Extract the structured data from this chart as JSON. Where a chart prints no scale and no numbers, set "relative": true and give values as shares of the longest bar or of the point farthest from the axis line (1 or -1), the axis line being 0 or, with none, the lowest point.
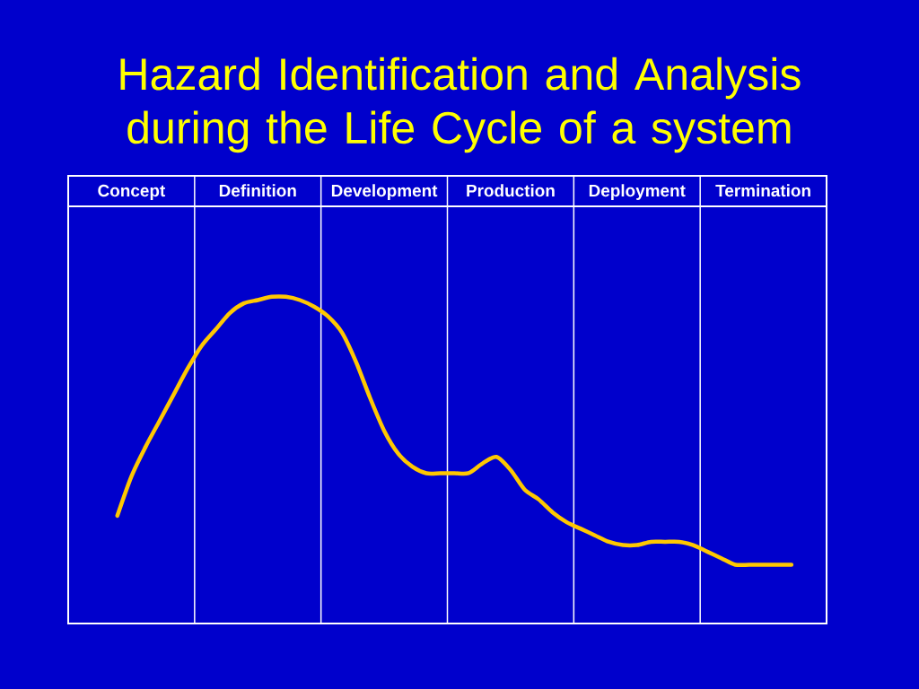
{
  "chart_data": {
    "type": "line",
    "title": "Hazard Identification and Analysis during the Life Cycle of a system",
    "relative": true,
    "categories": [
      null,
      null,
      null,
      null,
      "Concept",
      null,
      null,
      null,
      null,
      null,
      null,
      null,
      null,
      "Definition",
      null,
      null,
      null,
      null,
      null,
      null,
      null,
      null,
      "Development",
      null,
      null,
      null,
      null,
      null,
      null,
      null,
      null,
      "Production",
      null,
      null,
      null,
      null,
      null,
      null,
      null,
      null,
      "Deployment",
      null,
      null,
      null,
      null,
      null,
      null,
      null,
      null,
      "Termination",
      null,
      null,
      null,
      null
    ],
    "series": [
      {
        "color": "#ffc800",
        "values": [
          null,
          null,
          null,
          0.33,
          0.45,
          0.54,
          0.62,
          0.7,
          0.78,
          0.85,
          0.9,
          0.95,
          0.98,
          0.99,
          1.0,
          1.0,
          0.99,
          0.97,
          0.94,
          0.89,
          0.8,
          0.69,
          0.59,
          0.52,
          0.48,
          0.46,
          0.46,
          0.46,
          0.46,
          0.49,
          0.51,
          0.47,
          0.41,
          0.38,
          0.34,
          0.31,
          0.29,
          0.27,
          0.25,
          0.24,
          0.24,
          0.25,
          0.25,
          0.25,
          0.24,
          0.22,
          0.2,
          0.18,
          0.18,
          0.18,
          0.18,
          0.18,
          null,
          null
        ]
      }
    ]
  }
}
